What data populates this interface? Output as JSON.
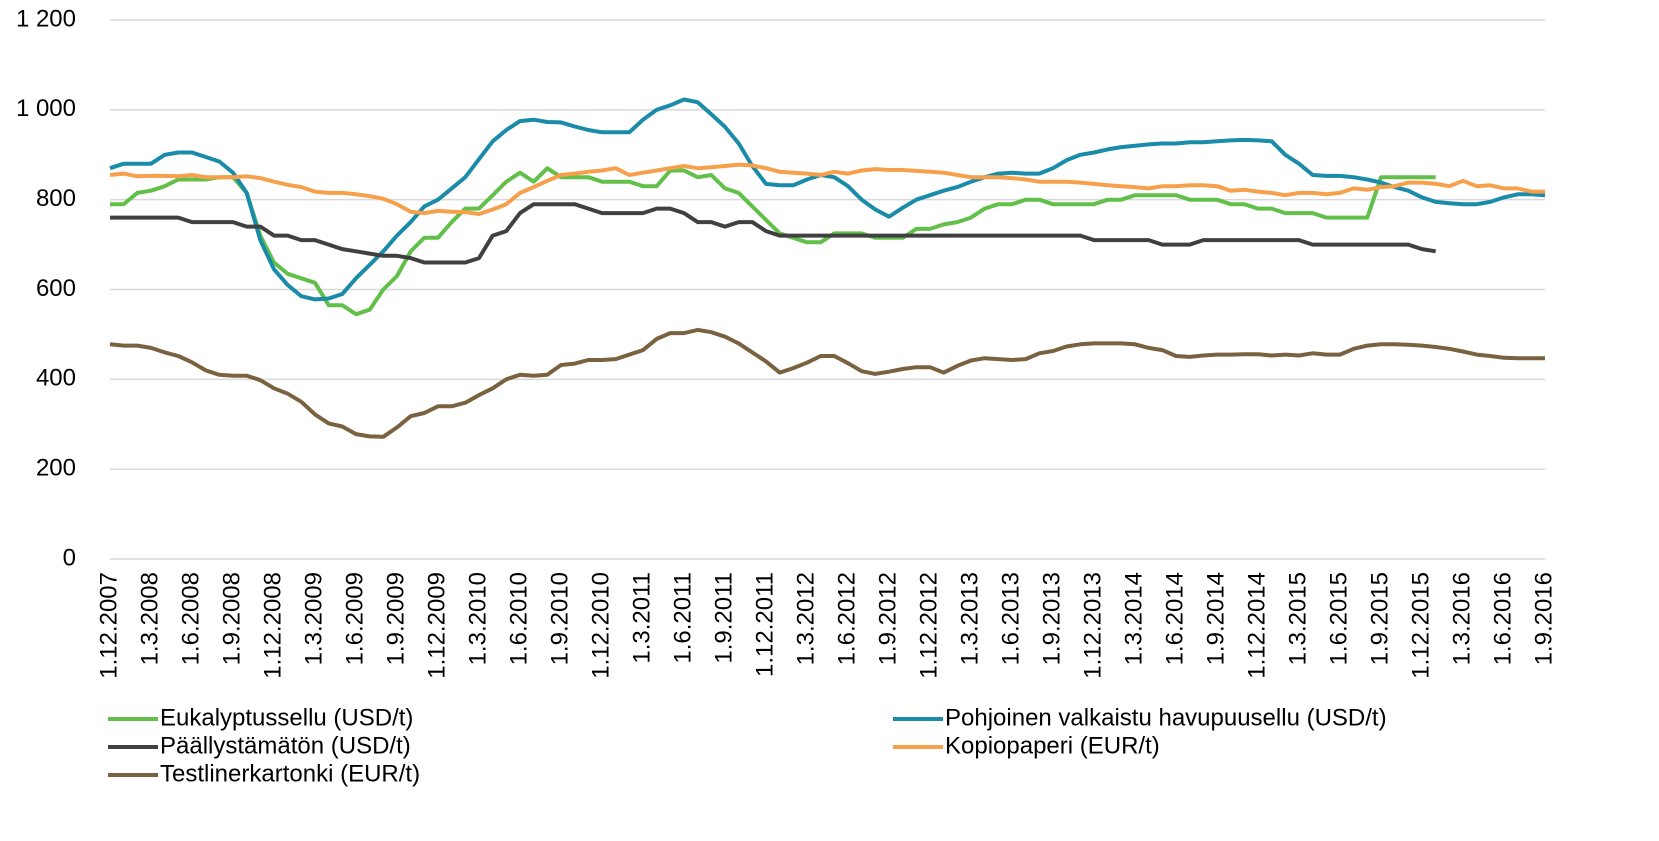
{
  "chart_data": {
    "type": "line",
    "categories": [
      "1.12.2007",
      null,
      null,
      "1.3.2008",
      null,
      null,
      "1.6.2008",
      null,
      null,
      "1.9.2008",
      null,
      null,
      "1.12.2008",
      null,
      null,
      "1.3.2009",
      null,
      null,
      "1.6.2009",
      null,
      null,
      "1.9.2009",
      null,
      null,
      "1.12.2009",
      null,
      null,
      "1.3.2010",
      null,
      null,
      "1.6.2010",
      null,
      null,
      "1.9.2010",
      null,
      null,
      "1.12.2010",
      null,
      null,
      "1.3.2011",
      null,
      null,
      "1.6.2011",
      null,
      null,
      "1.9.2011",
      null,
      null,
      "1.12.2011",
      null,
      null,
      "1.3.2012",
      null,
      null,
      "1.6.2012",
      null,
      null,
      "1.9.2012",
      null,
      null,
      "1.12.2012",
      null,
      null,
      "1.3.2013",
      null,
      null,
      "1.6.2013",
      null,
      null,
      "1.9.2013",
      null,
      null,
      "1.12.2013",
      null,
      null,
      "1.3.2014",
      null,
      null,
      "1.6.2014",
      null,
      null,
      "1.9.2014",
      null,
      null,
      "1.12.2014",
      null,
      null,
      "1.3.2015",
      null,
      null,
      "1.6.2015",
      null,
      null,
      "1.9.2015",
      null,
      null,
      "1.12.2015",
      null,
      null,
      "1.3.2016",
      null,
      null,
      "1.6.2016",
      null,
      null,
      "1.9.2016"
    ],
    "series": [
      {
        "name": "Eukalyptussellu (USD/t)",
        "color": "#62c04a",
        "values": [
          790,
          790,
          815,
          820,
          830,
          845,
          845,
          845,
          850,
          850,
          815,
          720,
          660,
          635,
          625,
          615,
          565,
          565,
          545,
          555,
          600,
          630,
          685,
          715,
          715,
          750,
          780,
          780,
          810,
          840,
          860,
          840,
          870,
          850,
          850,
          850,
          840,
          840,
          840,
          830,
          830,
          865,
          865,
          850,
          855,
          825,
          815,
          785,
          755,
          725,
          715,
          705,
          705,
          725,
          725,
          725,
          715,
          715,
          715,
          735,
          735,
          745,
          750,
          760,
          780,
          790,
          790,
          800,
          800,
          790,
          790,
          790,
          790,
          800,
          800,
          810,
          810,
          810,
          810,
          800,
          800,
          800,
          790,
          790,
          780,
          780,
          770,
          770,
          770,
          760,
          760,
          760,
          760,
          850,
          850,
          850,
          850,
          850,
          null,
          null,
          null,
          null,
          null,
          null,
          null,
          null
        ]
      },
      {
        "name": "Pohjoinen valkaistu havupuusellu (USD/t)",
        "color": "#1a8ba8",
        "values": [
          870,
          880,
          880,
          880,
          900,
          905,
          905,
          895,
          885,
          860,
          815,
          710,
          645,
          610,
          585,
          578,
          580,
          590,
          625,
          655,
          685,
          720,
          750,
          785,
          800,
          825,
          850,
          890,
          930,
          955,
          975,
          978,
          973,
          972,
          963,
          955,
          950,
          950,
          950,
          978,
          1000,
          1010,
          1023,
          1017,
          990,
          962,
          925,
          875,
          835,
          832,
          832,
          845,
          855,
          850,
          830,
          800,
          778,
          762,
          782,
          800,
          810,
          820,
          828,
          840,
          850,
          858,
          860,
          858,
          858,
          870,
          888,
          900,
          905,
          912,
          917,
          920,
          923,
          925,
          925,
          928,
          928,
          930,
          932,
          933,
          932,
          930,
          900,
          880,
          855,
          853,
          853,
          850,
          845,
          838,
          828,
          820,
          805,
          795,
          792,
          790,
          790,
          795,
          805,
          812,
          812,
          810
        ]
      },
      {
        "name": "Päällystämätön (USD/t)",
        "color": "#404040",
        "values": [
          760,
          760,
          760,
          760,
          760,
          760,
          750,
          750,
          750,
          750,
          740,
          740,
          720,
          720,
          710,
          710,
          700,
          690,
          685,
          680,
          675,
          675,
          670,
          660,
          660,
          660,
          660,
          670,
          720,
          730,
          770,
          790,
          790,
          790,
          790,
          780,
          770,
          770,
          770,
          770,
          780,
          780,
          770,
          750,
          750,
          740,
          750,
          750,
          730,
          720,
          720,
          720,
          720,
          720,
          720,
          720,
          720,
          720,
          720,
          720,
          720,
          720,
          720,
          720,
          720,
          720,
          720,
          720,
          720,
          720,
          720,
          720,
          710,
          710,
          710,
          710,
          710,
          700,
          700,
          700,
          710,
          710,
          710,
          710,
          710,
          710,
          710,
          710,
          700,
          700,
          700,
          700,
          700,
          700,
          700,
          700,
          690,
          685,
          null,
          null,
          null,
          null,
          null,
          null,
          null,
          null
        ]
      },
      {
        "name": "Kopiopaperi (EUR/t)",
        "color": "#f7a04c",
        "values": [
          855,
          858,
          852,
          853,
          853,
          852,
          855,
          850,
          850,
          850,
          852,
          848,
          840,
          833,
          828,
          818,
          815,
          815,
          812,
          808,
          802,
          790,
          773,
          770,
          775,
          773,
          772,
          768,
          778,
          790,
          815,
          828,
          842,
          855,
          858,
          862,
          865,
          870,
          855,
          860,
          865,
          870,
          875,
          870,
          872,
          875,
          878,
          876,
          870,
          862,
          860,
          858,
          855,
          862,
          858,
          865,
          868,
          866,
          866,
          864,
          862,
          860,
          855,
          850,
          850,
          850,
          848,
          845,
          840,
          840,
          840,
          838,
          835,
          832,
          830,
          828,
          825,
          830,
          830,
          832,
          832,
          830,
          820,
          822,
          818,
          815,
          810,
          815,
          815,
          812,
          815,
          825,
          822,
          828,
          830,
          838,
          838,
          835,
          830,
          842,
          830,
          832,
          825,
          825,
          818,
          818
        ]
      },
      {
        "name": "Testlinerkartonki (EUR/t)",
        "color": "#7a6241",
        "values": [
          478,
          475,
          475,
          470,
          460,
          452,
          438,
          420,
          410,
          408,
          408,
          398,
          380,
          368,
          350,
          322,
          302,
          295,
          278,
          273,
          272,
          293,
          318,
          325,
          340,
          340,
          348,
          365,
          380,
          400,
          410,
          408,
          410,
          432,
          435,
          443,
          443,
          445,
          455,
          465,
          490,
          503,
          503,
          510,
          505,
          495,
          480,
          460,
          440,
          415,
          425,
          437,
          452,
          452,
          436,
          418,
          412,
          417,
          423,
          427,
          427,
          415,
          430,
          442,
          447,
          445,
          443,
          445,
          458,
          463,
          473,
          478,
          480,
          480,
          480,
          478,
          470,
          465,
          452,
          450,
          453,
          455,
          455,
          456,
          456,
          453,
          455,
          453,
          458,
          455,
          455,
          468,
          475,
          478,
          478,
          477,
          475,
          472,
          468,
          462,
          455,
          452,
          448,
          447,
          447,
          447
        ]
      }
    ],
    "ylim": [
      0,
      1200
    ],
    "yticks": [
      0,
      200,
      400,
      600,
      800,
      {
        "value": 1000,
        "label": "1 000"
      },
      {
        "value": 1200,
        "label": "1 200"
      }
    ],
    "grid": true
  }
}
